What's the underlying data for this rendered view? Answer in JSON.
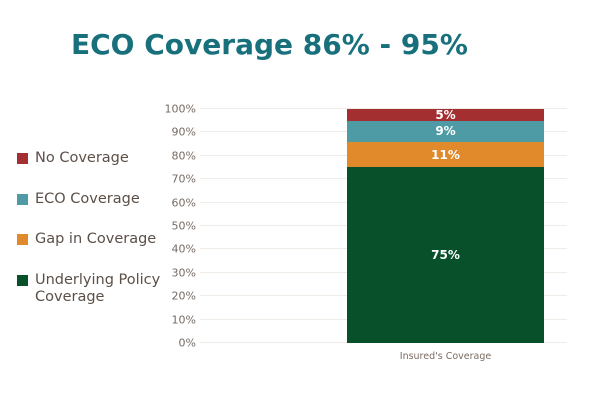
{
  "title": "ECO Coverage 86% - 95%",
  "colors": {
    "title_text": "#17707c",
    "legend_text": "#5c4f48",
    "axis_tick_text": "#776b63",
    "axis_label_text": "#7b6b62",
    "gridline": "#efebe7",
    "bar_label_text": "#ffffff",
    "no_coverage": "#a42f31",
    "eco_coverage": "#4f9ba5",
    "gap_in_coverage": "#e08a2b",
    "underlying_policy_coverage": "#07502a"
  },
  "legend": {
    "items": [
      {
        "label": "No Coverage",
        "color": "#a42f31"
      },
      {
        "label": "ECO Coverage",
        "color": "#4f9ba5"
      },
      {
        "label": "Gap in Coverage",
        "color": "#e08a2b"
      },
      {
        "label": "Underlying Policy Coverage",
        "color": "#07502a"
      }
    ]
  },
  "chart_data": {
    "type": "bar",
    "stacked": true,
    "title": "ECO Coverage 86% - 95%",
    "categories": [
      "Insured's Coverage"
    ],
    "series": [
      {
        "name": "Underlying Policy Coverage",
        "values": [
          75
        ],
        "label": "75%",
        "color": "#07502a"
      },
      {
        "name": "Gap in Coverage",
        "values": [
          11
        ],
        "label": "11%",
        "color": "#e08a2b"
      },
      {
        "name": "ECO Coverage",
        "values": [
          9
        ],
        "label": "9%",
        "color": "#4f9ba5"
      },
      {
        "name": "No Coverage",
        "values": [
          5
        ],
        "label": "5%",
        "color": "#a42f31"
      }
    ],
    "xlabel": "Insured's Coverage",
    "ylabel": "",
    "ylim": [
      0,
      100
    ],
    "yticks": [
      "0%",
      "10%",
      "20%",
      "30%",
      "40%",
      "50%",
      "60%",
      "70%",
      "80%",
      "90%",
      "100%"
    ],
    "grid": true,
    "legend_position": "left",
    "data_labels_visible": true
  }
}
